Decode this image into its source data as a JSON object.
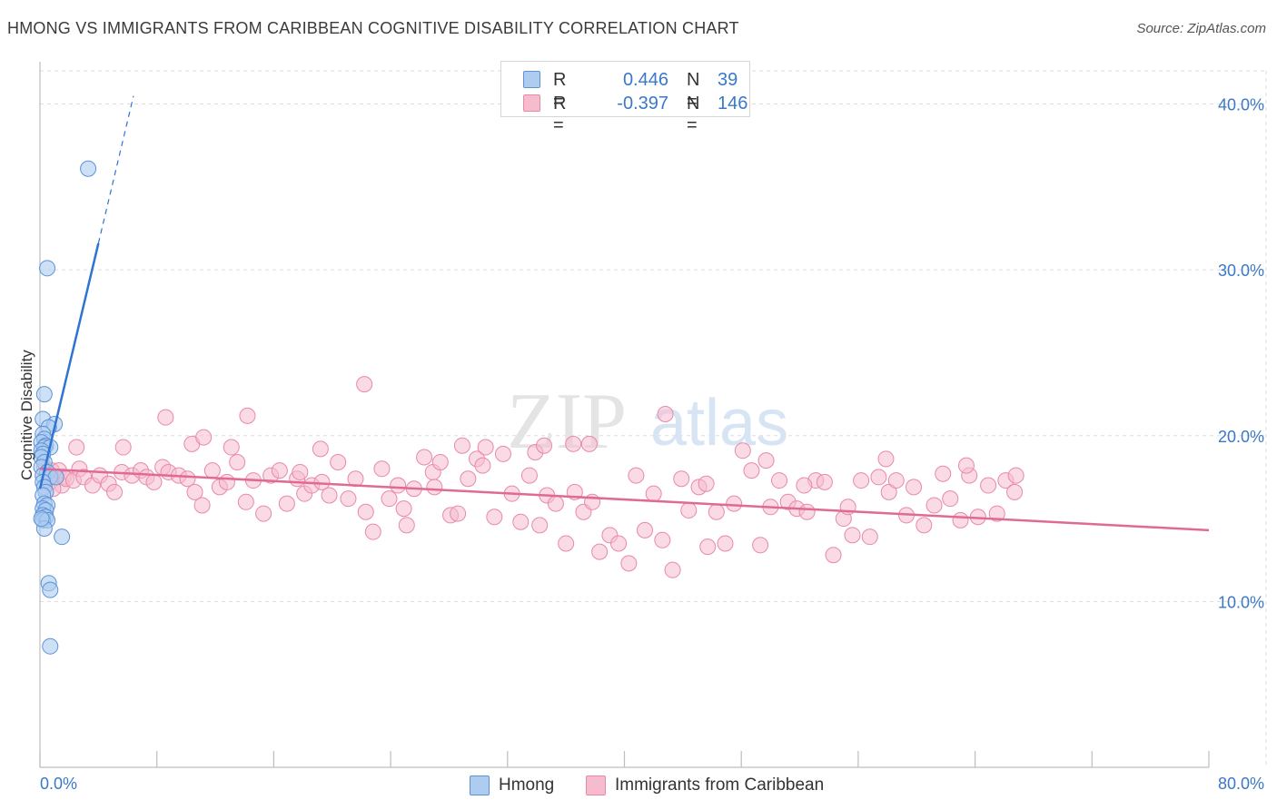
{
  "title": "HMONG VS IMMIGRANTS FROM CARIBBEAN COGNITIVE DISABILITY CORRELATION CHART",
  "source": "Source: ZipAtlas.com",
  "watermark": {
    "zip": "ZIP",
    "atlas": "atlas"
  },
  "legend_top": {
    "r_label": "R =",
    "n_label": "N =",
    "rows": [
      {
        "r": "0.446",
        "n": "39"
      },
      {
        "r": "-0.397",
        "n": "146"
      }
    ]
  },
  "legend_bottom": [
    "Hmong",
    "Immigrants from Caribbean"
  ],
  "colors": {
    "hmong_fill": "#aecbf0",
    "hmong_stroke": "#5b93d8",
    "hmong_line": "#2f74d0",
    "carib_fill": "#f6bccd",
    "carib_stroke": "#e889a8",
    "carib_line": "#e06a96",
    "tick_label": "#3a78c9",
    "grid": "#dddddd"
  },
  "chart_data": {
    "type": "scatter",
    "title": "HMONG VS IMMIGRANTS FROM CARIBBEAN COGNITIVE DISABILITY CORRELATION CHART",
    "xlabel": "",
    "ylabel": "Cognitive Disability",
    "xlim": [
      0,
      80
    ],
    "ylim": [
      0,
      42
    ],
    "x_tick_labels": [
      "0.0%",
      "80.0%"
    ],
    "y_ticks": [
      10,
      20,
      30,
      40
    ],
    "y_tick_labels": [
      "10.0%",
      "20.0%",
      "30.0%",
      "40.0%"
    ],
    "series": [
      {
        "name": "Hmong",
        "R": 0.446,
        "N": 39,
        "trend": {
          "x0": 0.0,
          "y0": 16.8,
          "x1": 4.0,
          "y1": 31.6,
          "dash_to_x": 6.4
        },
        "points": [
          [
            3.3,
            36.1
          ],
          [
            0.5,
            30.1
          ],
          [
            0.3,
            22.5
          ],
          [
            0.2,
            21.0
          ],
          [
            1.0,
            20.7
          ],
          [
            0.6,
            20.5
          ],
          [
            0.2,
            20.1
          ],
          [
            0.3,
            19.8
          ],
          [
            0.1,
            19.6
          ],
          [
            0.4,
            19.4
          ],
          [
            0.3,
            19.3
          ],
          [
            0.7,
            19.3
          ],
          [
            0.1,
            19.1
          ],
          [
            0.2,
            18.9
          ],
          [
            0.1,
            18.7
          ],
          [
            0.3,
            18.4
          ],
          [
            0.1,
            18.1
          ],
          [
            0.5,
            17.8
          ],
          [
            0.2,
            17.6
          ],
          [
            0.7,
            17.5
          ],
          [
            1.1,
            17.5
          ],
          [
            0.2,
            17.2
          ],
          [
            0.3,
            16.9
          ],
          [
            0.4,
            16.6
          ],
          [
            0.2,
            16.4
          ],
          [
            0.3,
            15.9
          ],
          [
            0.5,
            15.8
          ],
          [
            0.2,
            15.6
          ],
          [
            0.4,
            15.5
          ],
          [
            0.2,
            15.2
          ],
          [
            0.4,
            15.1
          ],
          [
            0.2,
            14.9
          ],
          [
            0.5,
            14.9
          ],
          [
            0.3,
            14.4
          ],
          [
            1.5,
            13.9
          ],
          [
            0.6,
            11.1
          ],
          [
            0.7,
            10.7
          ],
          [
            0.7,
            7.3
          ],
          [
            0.1,
            15.0
          ]
        ]
      },
      {
        "name": "Immigrants from Caribbean",
        "R": -0.397,
        "N": 146,
        "trend": {
          "x0": 0.0,
          "y0": 18.0,
          "x1": 80.0,
          "y1": 14.3
        },
        "points": [
          [
            0.3,
            18.1
          ],
          [
            0.8,
            17.9
          ],
          [
            1.3,
            17.9
          ],
          [
            0.6,
            17.7
          ],
          [
            1.0,
            17.5
          ],
          [
            1.6,
            17.5
          ],
          [
            0.7,
            17.2
          ],
          [
            1.5,
            17.0
          ],
          [
            0.9,
            16.8
          ],
          [
            1.8,
            17.4
          ],
          [
            2.3,
            17.3
          ],
          [
            2.7,
            18.0
          ],
          [
            3.0,
            17.5
          ],
          [
            3.6,
            17.0
          ],
          [
            4.1,
            17.6
          ],
          [
            4.7,
            17.1
          ],
          [
            5.1,
            16.6
          ],
          [
            5.6,
            17.8
          ],
          [
            6.3,
            17.6
          ],
          [
            6.9,
            17.9
          ],
          [
            7.3,
            17.5
          ],
          [
            7.8,
            17.2
          ],
          [
            8.4,
            18.1
          ],
          [
            8.8,
            17.8
          ],
          [
            9.5,
            17.6
          ],
          [
            10.1,
            17.4
          ],
          [
            10.6,
            16.6
          ],
          [
            11.1,
            15.8
          ],
          [
            11.8,
            17.9
          ],
          [
            12.3,
            16.9
          ],
          [
            12.8,
            17.2
          ],
          [
            13.5,
            18.4
          ],
          [
            14.1,
            16.0
          ],
          [
            14.6,
            17.3
          ],
          [
            15.3,
            15.3
          ],
          [
            15.8,
            17.6
          ],
          [
            16.4,
            17.9
          ],
          [
            16.9,
            15.9
          ],
          [
            17.6,
            17.4
          ],
          [
            18.1,
            16.5
          ],
          [
            18.6,
            17.0
          ],
          [
            19.3,
            17.2
          ],
          [
            19.8,
            16.4
          ],
          [
            20.4,
            18.4
          ],
          [
            21.1,
            16.2
          ],
          [
            21.6,
            17.4
          ],
          [
            22.3,
            15.4
          ],
          [
            22.8,
            14.2
          ],
          [
            23.4,
            18.0
          ],
          [
            23.9,
            16.2
          ],
          [
            24.5,
            17.0
          ],
          [
            25.1,
            14.6
          ],
          [
            25.6,
            16.8
          ],
          [
            26.3,
            18.7
          ],
          [
            26.9,
            17.8
          ],
          [
            27.4,
            18.4
          ],
          [
            28.1,
            15.2
          ],
          [
            28.6,
            15.3
          ],
          [
            29.3,
            17.4
          ],
          [
            29.9,
            18.6
          ],
          [
            30.5,
            19.3
          ],
          [
            31.1,
            15.1
          ],
          [
            31.7,
            18.9
          ],
          [
            32.3,
            16.5
          ],
          [
            32.9,
            14.8
          ],
          [
            33.5,
            17.6
          ],
          [
            34.2,
            14.6
          ],
          [
            34.7,
            16.4
          ],
          [
            35.3,
            15.9
          ],
          [
            36.0,
            13.5
          ],
          [
            36.6,
            16.6
          ],
          [
            37.2,
            15.4
          ],
          [
            37.8,
            16.0
          ],
          [
            38.3,
            13.0
          ],
          [
            39.0,
            14.0
          ],
          [
            39.6,
            13.5
          ],
          [
            40.3,
            12.3
          ],
          [
            40.8,
            17.6
          ],
          [
            41.4,
            14.3
          ],
          [
            42.0,
            16.5
          ],
          [
            42.6,
            13.7
          ],
          [
            43.3,
            11.9
          ],
          [
            43.9,
            17.4
          ],
          [
            44.4,
            15.5
          ],
          [
            45.1,
            16.9
          ],
          [
            45.7,
            13.3
          ],
          [
            46.3,
            15.4
          ],
          [
            46.9,
            13.5
          ],
          [
            47.5,
            15.9
          ],
          [
            48.1,
            19.1
          ],
          [
            48.7,
            17.9
          ],
          [
            49.3,
            13.4
          ],
          [
            50.0,
            15.7
          ],
          [
            50.6,
            17.3
          ],
          [
            51.2,
            16.0
          ],
          [
            51.8,
            15.6
          ],
          [
            52.5,
            15.4
          ],
          [
            53.1,
            17.3
          ],
          [
            53.7,
            17.2
          ],
          [
            54.3,
            12.8
          ],
          [
            55.0,
            15.0
          ],
          [
            55.6,
            14.0
          ],
          [
            56.2,
            17.3
          ],
          [
            56.8,
            13.9
          ],
          [
            57.4,
            17.5
          ],
          [
            58.1,
            16.6
          ],
          [
            58.6,
            17.3
          ],
          [
            59.3,
            15.2
          ],
          [
            59.8,
            16.9
          ],
          [
            60.5,
            14.6
          ],
          [
            61.2,
            15.8
          ],
          [
            61.8,
            17.7
          ],
          [
            62.3,
            16.2
          ],
          [
            63.0,
            14.9
          ],
          [
            63.6,
            17.6
          ],
          [
            64.2,
            15.1
          ],
          [
            64.9,
            17.0
          ],
          [
            65.5,
            15.3
          ],
          [
            66.1,
            17.3
          ],
          [
            66.7,
            16.6
          ],
          [
            2.5,
            19.3
          ],
          [
            5.7,
            19.3
          ],
          [
            8.6,
            21.1
          ],
          [
            10.4,
            19.5
          ],
          [
            11.2,
            19.9
          ],
          [
            13.1,
            19.3
          ],
          [
            14.2,
            21.2
          ],
          [
            17.8,
            17.8
          ],
          [
            19.2,
            19.2
          ],
          [
            22.2,
            23.1
          ],
          [
            24.9,
            15.6
          ],
          [
            27.0,
            16.9
          ],
          [
            28.9,
            19.4
          ],
          [
            30.3,
            18.2
          ],
          [
            33.9,
            19.0
          ],
          [
            34.5,
            19.4
          ],
          [
            36.5,
            19.5
          ],
          [
            37.6,
            19.5
          ],
          [
            42.8,
            21.3
          ],
          [
            45.6,
            17.1
          ],
          [
            49.7,
            18.5
          ],
          [
            52.3,
            17.0
          ],
          [
            55.3,
            15.7
          ],
          [
            57.9,
            18.6
          ],
          [
            63.4,
            18.2
          ],
          [
            66.8,
            17.6
          ]
        ]
      }
    ]
  }
}
